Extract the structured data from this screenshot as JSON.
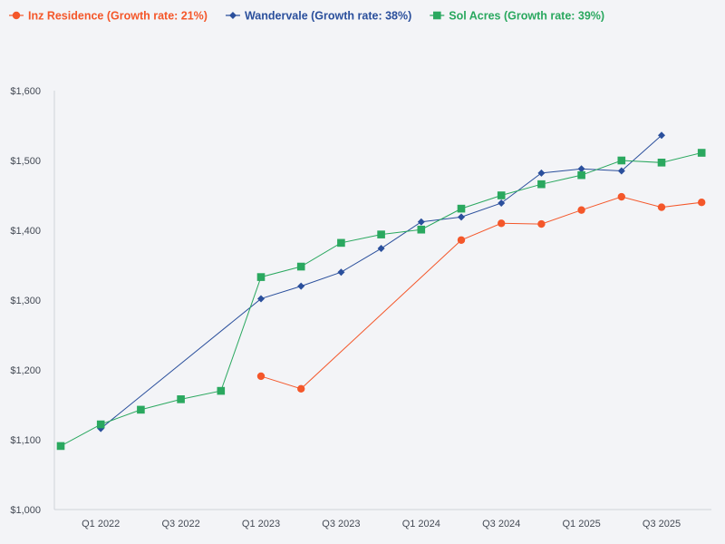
{
  "chart_data": {
    "type": "line",
    "title": "",
    "xlabel": "",
    "ylabel": "",
    "ylim": [
      1000,
      1600
    ],
    "y_ticks": [
      1000,
      1100,
      1200,
      1300,
      1400,
      1500,
      1600
    ],
    "y_tick_labels": [
      "$1,000",
      "$1,100",
      "$1,200",
      "$1,300",
      "$1,400",
      "$1,500",
      "$1,600"
    ],
    "x_tick_labels": [
      "Q1 2022",
      "Q3 2022",
      "Q1 2023",
      "Q3 2023",
      "Q1 2024",
      "Q3 2024",
      "Q1 2025",
      "Q3 2025"
    ],
    "x_tick_indices": [
      1,
      3,
      5,
      7,
      9,
      11,
      13,
      15
    ],
    "categories": [
      "Q4 2021",
      "Q1 2022",
      "Q2 2022",
      "Q3 2022",
      "Q4 2022",
      "Q1 2023",
      "Q2 2023",
      "Q3 2023",
      "Q4 2023",
      "Q1 2024",
      "Q2 2024",
      "Q3 2024",
      "Q4 2024",
      "Q1 2025",
      "Q2 2025",
      "Q3 2025",
      "Q4 2025"
    ],
    "legend_position": "top-left",
    "grid": false,
    "series": [
      {
        "name": "Inz Residence (Growth rate: 21%)",
        "color": "#f4572a",
        "marker": "circle",
        "values": [
          null,
          null,
          null,
          null,
          null,
          1191,
          1173,
          null,
          null,
          null,
          1386,
          1410,
          1409,
          1429,
          1448,
          1433,
          1440
        ]
      },
      {
        "name": "Wandervale (Growth rate: 38%)",
        "color": "#2a4f9c",
        "marker": "diamond",
        "values": [
          null,
          1116,
          null,
          null,
          null,
          1302,
          1320,
          1340,
          1374,
          1412,
          1419,
          1439,
          1482,
          1488,
          1485,
          1536,
          null
        ]
      },
      {
        "name": "Sol Acres (Growth rate: 39%)",
        "color": "#2aa85f",
        "marker": "square",
        "values": [
          1091,
          1122,
          1143,
          1158,
          1170,
          1333,
          1348,
          1382,
          1394,
          1401,
          1431,
          1450,
          1466,
          1479,
          1500,
          1497,
          1511
        ]
      }
    ]
  }
}
